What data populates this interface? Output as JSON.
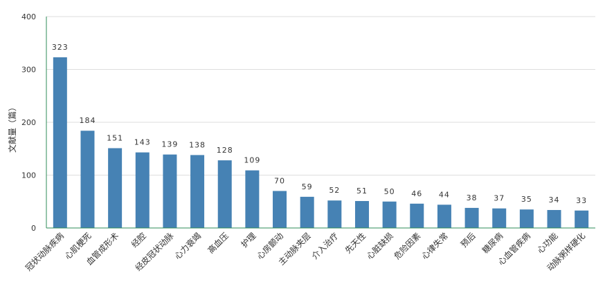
{
  "chart_data": {
    "type": "bar",
    "categories": [
      "冠状动脉疾病",
      "心肌梗死",
      "血管成形术",
      "经腔",
      "经皮冠状动脉",
      "心力衰竭",
      "高血压",
      "护理",
      "心房颤动",
      "主动脉夹层",
      "介入治疗",
      "先天性",
      "心脏缺损",
      "危险因素",
      "心律失常",
      "预后",
      "糖尿病",
      "心血管疾病",
      "心功能",
      "动脉粥样硬化"
    ],
    "values": [
      323,
      184,
      151,
      143,
      139,
      138,
      128,
      109,
      70,
      59,
      52,
      51,
      50,
      46,
      44,
      38,
      37,
      35,
      34,
      33
    ],
    "ylabel": "文献量（篇）",
    "ylim": [
      0,
      400
    ],
    "yticks": [
      0,
      100,
      200,
      300,
      400
    ],
    "grid": true,
    "bar_color": "#4682b4",
    "axis_color": "#2e8b57"
  }
}
